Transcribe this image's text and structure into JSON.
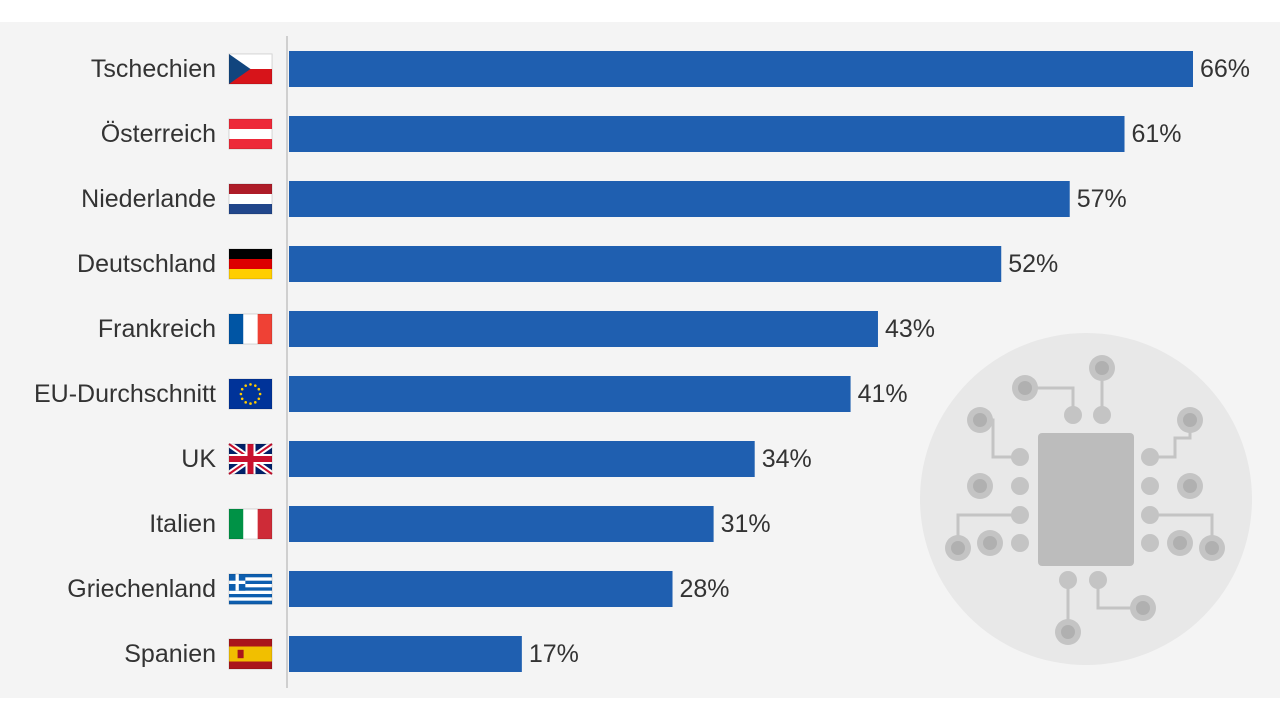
{
  "chart_data": {
    "type": "bar",
    "orientation": "horizontal",
    "categories": [
      "Tschechien",
      "Österreich",
      "Niederlande",
      "Deutschland",
      "Frankreich",
      "EU-Durchschnitt",
      "UK",
      "Italien",
      "Griechenland",
      "Spanien"
    ],
    "flag_icons": [
      "flag-cz-icon",
      "flag-at-icon",
      "flag-nl-icon",
      "flag-de-icon",
      "flag-fr-icon",
      "flag-eu-icon",
      "flag-uk-icon",
      "flag-it-icon",
      "flag-gr-icon",
      "flag-es-icon"
    ],
    "values": [
      66,
      61,
      57,
      52,
      43,
      41,
      34,
      31,
      28,
      17
    ],
    "value_labels": [
      "66%",
      "61%",
      "57%",
      "52%",
      "43%",
      "41%",
      "34%",
      "31%",
      "28%",
      "17%"
    ],
    "xlim": [
      0,
      66
    ],
    "bar_color": "#1f5fb0",
    "grid": false,
    "legend": "none"
  },
  "decoration": {
    "icon": "circuit-chip-icon",
    "circle_color": "#e8e8e8",
    "icon_color": "#c4c4c4"
  }
}
